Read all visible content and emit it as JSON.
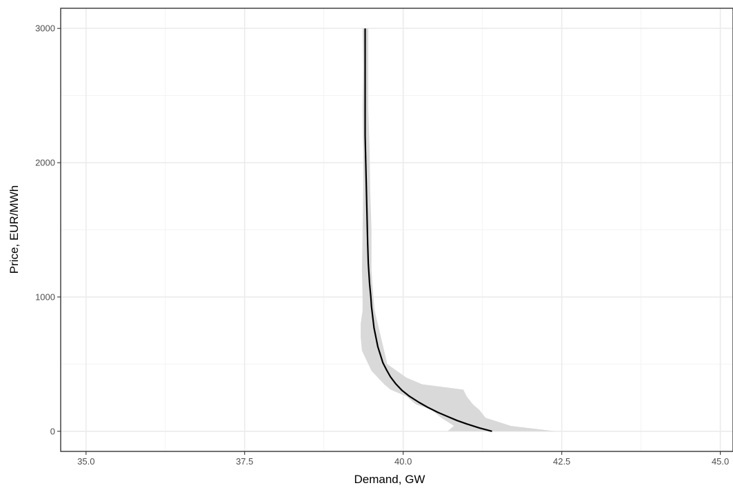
{
  "chart_data": {
    "type": "line",
    "title": "",
    "xlabel": "Demand, GW",
    "ylabel": "Price, EUR/MWh",
    "xlim": [
      34.6,
      45.2
    ],
    "ylim": [
      -150,
      3150
    ],
    "x_ticks": [
      35.0,
      37.5,
      40.0,
      42.5,
      45.0
    ],
    "x_tick_labels": [
      "35.0",
      "37.5",
      "40.0",
      "42.5",
      "45.0"
    ],
    "y_ticks": [
      0,
      1000,
      2000,
      3000
    ],
    "y_tick_labels": [
      "0",
      "1000",
      "2000",
      "3000"
    ],
    "grid": true,
    "legend": "none",
    "colors": {
      "line": "#000000",
      "band": "#d9d9d9",
      "grid_major": "#ebebeb",
      "grid_minor": "#f3f3f3",
      "panel_border": "#333333"
    },
    "series": [
      {
        "x": [
          41.4,
          41.2,
          41.0,
          40.85,
          40.7,
          40.55,
          40.4,
          40.25,
          40.1,
          39.98,
          39.88,
          39.8,
          39.74,
          39.68,
          39.64,
          39.6,
          39.57,
          39.54,
          39.52,
          39.5,
          39.49,
          39.47,
          39.45,
          39.44,
          39.43,
          39.42,
          39.41,
          39.4,
          39.4,
          39.4,
          39.4
        ],
        "y": [
          0,
          25,
          55,
          80,
          110,
          140,
          175,
          215,
          260,
          305,
          355,
          405,
          455,
          510,
          570,
          630,
          700,
          770,
          850,
          930,
          1000,
          1100,
          1250,
          1400,
          1600,
          1800,
          2000,
          2200,
          2500,
          2800,
          3000
        ]
      }
    ],
    "band": {
      "x_low": [
        40.7,
        40.8,
        40.6,
        40.45,
        40.2,
        40.05,
        39.8,
        39.7,
        39.6,
        39.5,
        39.45,
        39.35,
        39.33,
        39.33,
        39.36,
        39.36,
        39.35,
        39.36,
        39.37,
        39.37,
        39.36,
        39.37,
        39.36
      ],
      "x_high": [
        42.4,
        41.7,
        41.3,
        41.2,
        41.1,
        41.0,
        40.95,
        40.3,
        40.05,
        39.9,
        39.75,
        39.7,
        39.65,
        39.6,
        39.55,
        39.53,
        39.5,
        39.5,
        39.48,
        39.47,
        39.45,
        39.45,
        39.45
      ],
      "y": [
        0,
        40,
        100,
        160,
        200,
        260,
        310,
        350,
        400,
        450,
        500,
        600,
        700,
        800,
        900,
        1000,
        1200,
        1500,
        1800,
        2100,
        2400,
        2700,
        3000
      ]
    }
  }
}
